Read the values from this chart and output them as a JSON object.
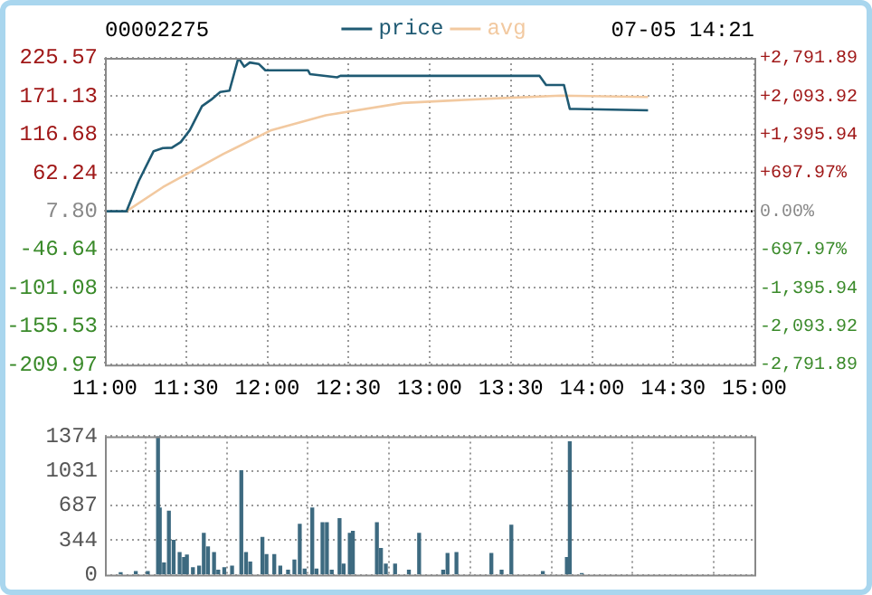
{
  "chart_data": [
    {
      "type": "line",
      "title": "00002275",
      "annotations": [
        "07-05 14:21"
      ],
      "series": [
        {
          "name": "price",
          "color": "#1f5a73",
          "x": [
            11,
            11.133,
            11.208,
            11.3,
            11.357,
            11.412,
            11.467,
            11.523,
            11.598,
            11.653,
            11.71,
            11.767,
            11.822,
            11.858,
            11.892,
            11.947,
            11.988,
            12.25,
            12.263,
            12.43,
            12.45,
            13.677,
            13.717,
            13.827,
            13.863,
            13.9,
            14.345
          ],
          "values": [
            7.8,
            7.8,
            50.6,
            93.1,
            97.5,
            98,
            106,
            123,
            157,
            166,
            177,
            179,
            225.5,
            213,
            219,
            217,
            208,
            208,
            202.5,
            198,
            200,
            200,
            187,
            187,
            153,
            153,
            151
          ]
        },
        {
          "name": "avg",
          "color": "#f2c9a0",
          "x": [
            11.133,
            11.357,
            11.728,
            12.025,
            12.36,
            12.833,
            13.395,
            13.807,
            14.345
          ],
          "values": [
            7.8,
            42,
            89,
            123,
            144,
            161.5,
            168,
            172,
            170
          ]
        }
      ],
      "xlim": [
        11,
        15
      ],
      "xticks": [
        {
          "value": 11,
          "label": "11:00"
        },
        {
          "value": 11.5,
          "label": "11:30"
        },
        {
          "value": 12,
          "label": "12:00"
        },
        {
          "value": 12.5,
          "label": "12:30"
        },
        {
          "value": 13,
          "label": "13:00"
        },
        {
          "value": 13.5,
          "label": "13:30"
        },
        {
          "value": 14,
          "label": "14:00"
        },
        {
          "value": 14.5,
          "label": "14:30"
        },
        {
          "value": 15,
          "label": "15:00"
        }
      ],
      "ylim": [
        -209.97,
        225.57
      ],
      "yticks": [
        -209.97,
        -155.53,
        -101.08,
        -46.64,
        {
          "value": 7.8,
          "label": "7.80"
        },
        62.24,
        116.68,
        171.13,
        225.57
      ],
      "y2lim": [
        -2791.89,
        2791.89
      ],
      "y2ticks": [
        {
          "value": -2791.89,
          "label": "-2,791.89"
        },
        {
          "value": -2093.92,
          "label": "-2,093.92"
        },
        {
          "value": -1395.94,
          "label": "-1,395.94"
        },
        {
          "value": -697.97,
          "label": "-697.97%"
        },
        {
          "value": 0,
          "label": "0.00%"
        },
        {
          "value": 697.97,
          "label": "+697.97%"
        },
        {
          "value": 1395.94,
          "label": "+1,395.94"
        },
        {
          "value": 2093.92,
          "label": "+2,093.92"
        },
        {
          "value": 2791.89,
          "label": "+2,791.89"
        }
      ],
      "ref_lines": [
        {
          "axis": "y",
          "value": 7.8,
          "color": "#000000",
          "line_style": "dotted"
        }
      ],
      "grid": true,
      "legend": "top",
      "marker": "none",
      "line_style": "solid"
    },
    {
      "type": "bar",
      "color": "#3d6a80",
      "x": [
        11.097,
        11.19,
        11.264,
        11.327,
        11.338,
        11.364,
        11.394,
        11.423,
        11.46,
        11.487,
        11.505,
        11.542,
        11.58,
        11.609,
        11.635,
        11.672,
        11.698,
        11.735,
        11.783,
        11.84,
        11.869,
        11.895,
        11.97,
        11.995,
        12.043,
        12.08,
        12.128,
        12.167,
        12.2,
        12.23,
        12.277,
        12.303,
        12.34,
        12.367,
        12.397,
        12.445,
        12.47,
        12.508,
        12.527,
        12.675,
        12.7,
        12.73,
        12.787,
        12.872,
        12.935,
        13.083,
        13.11,
        13.165,
        13.38,
        13.443,
        13.503,
        13.697,
        13.845,
        13.863,
        13.937
      ],
      "values": [
        20,
        30,
        30,
        1374,
        660,
        115,
        630,
        340,
        220,
        170,
        195,
        70,
        85,
        410,
        275,
        220,
        45,
        70,
        85,
        1031,
        220,
        125,
        370,
        200,
        200,
        85,
        45,
        145,
        500,
        55,
        660,
        55,
        515,
        515,
        45,
        555,
        105,
        410,
        430,
        515,
        260,
        105,
        105,
        45,
        410,
        45,
        210,
        220,
        210,
        45,
        490,
        30,
        170,
        1317,
        10
      ],
      "xlim": [
        11,
        15
      ],
      "xticks": [
        {
          "value": 11,
          "label": null
        },
        {
          "value": 11.5,
          "label": null
        },
        {
          "value": 12,
          "label": null
        },
        {
          "value": 12.5,
          "label": null
        },
        {
          "value": 13,
          "label": null
        },
        {
          "value": 13.5,
          "label": null
        },
        {
          "value": 14,
          "label": null
        },
        {
          "value": 14.5,
          "label": null
        },
        {
          "value": 15,
          "label": null
        }
      ],
      "ylim": [
        0,
        1374
      ],
      "yticks": [
        0,
        344,
        687,
        1031,
        1374
      ],
      "grid": true,
      "legend": false,
      "tick_labels": "y"
    }
  ]
}
